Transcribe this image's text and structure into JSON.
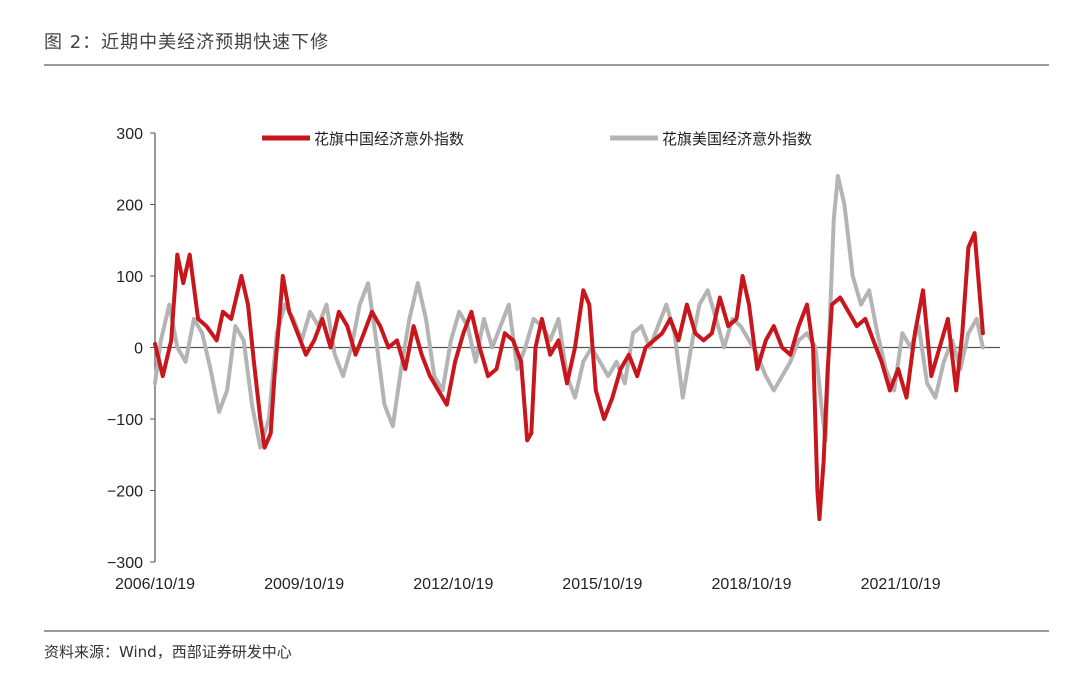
{
  "figure": {
    "title": "图 2：近期中美经济预期快速下修",
    "source": "资料来源：Wind，西部证券研发中心"
  },
  "chart_data": {
    "type": "line",
    "ylim": [
      -300,
      300
    ],
    "yticks": [
      "300",
      "200",
      "100",
      "0",
      "−100",
      "−200",
      "−300"
    ],
    "ytick_values": [
      300,
      200,
      100,
      0,
      -100,
      -200,
      -300
    ],
    "xlim": [
      "2006-10-19",
      "2023-10-19"
    ],
    "xticks": [
      "2006/10/19",
      "2009/10/19",
      "2012/10/19",
      "2015/10/19",
      "2018/10/19",
      "2021/10/19"
    ],
    "xtick_values": [
      "2006-10-19",
      "2009-10-19",
      "2012-10-19",
      "2015-10-19",
      "2018-10-19",
      "2021-10-19"
    ],
    "legend_position": "top",
    "series": [
      {
        "name": "花旗中国经济意外指数",
        "color": "#c8161d",
        "points": [
          [
            "2006-10-19",
            5
          ],
          [
            "2006-12-15",
            -40
          ],
          [
            "2007-02-15",
            10
          ],
          [
            "2007-04-01",
            130
          ],
          [
            "2007-05-15",
            90
          ],
          [
            "2007-07-01",
            130
          ],
          [
            "2007-09-01",
            40
          ],
          [
            "2007-11-01",
            30
          ],
          [
            "2008-01-15",
            10
          ],
          [
            "2008-03-01",
            50
          ],
          [
            "2008-05-01",
            40
          ],
          [
            "2008-07-15",
            100
          ],
          [
            "2008-09-01",
            60
          ],
          [
            "2008-10-15",
            -20
          ],
          [
            "2008-12-01",
            -100
          ],
          [
            "2009-01-01",
            -140
          ],
          [
            "2009-02-15",
            -120
          ],
          [
            "2009-03-15",
            -40
          ],
          [
            "2009-04-15",
            30
          ],
          [
            "2009-05-15",
            100
          ],
          [
            "2009-07-01",
            50
          ],
          [
            "2009-09-01",
            20
          ],
          [
            "2009-11-01",
            -10
          ],
          [
            "2010-01-01",
            10
          ],
          [
            "2010-03-01",
            40
          ],
          [
            "2010-05-01",
            0
          ],
          [
            "2010-07-01",
            50
          ],
          [
            "2010-09-01",
            30
          ],
          [
            "2010-11-01",
            -10
          ],
          [
            "2011-01-01",
            20
          ],
          [
            "2011-03-01",
            50
          ],
          [
            "2011-05-01",
            30
          ],
          [
            "2011-07-01",
            0
          ],
          [
            "2011-09-01",
            10
          ],
          [
            "2011-11-01",
            -30
          ],
          [
            "2012-01-01",
            30
          ],
          [
            "2012-03-01",
            -10
          ],
          [
            "2012-05-01",
            -40
          ],
          [
            "2012-07-01",
            -60
          ],
          [
            "2012-09-01",
            -80
          ],
          [
            "2012-11-01",
            -20
          ],
          [
            "2013-01-01",
            20
          ],
          [
            "2013-03-01",
            50
          ],
          [
            "2013-05-01",
            0
          ],
          [
            "2013-07-01",
            -40
          ],
          [
            "2013-09-01",
            -30
          ],
          [
            "2013-11-01",
            20
          ],
          [
            "2014-01-01",
            10
          ],
          [
            "2014-03-01",
            -20
          ],
          [
            "2014-04-15",
            -130
          ],
          [
            "2014-05-15",
            -120
          ],
          [
            "2014-06-15",
            0
          ],
          [
            "2014-08-01",
            40
          ],
          [
            "2014-10-01",
            -10
          ],
          [
            "2014-12-01",
            10
          ],
          [
            "2015-02-01",
            -50
          ],
          [
            "2015-04-01",
            0
          ],
          [
            "2015-06-01",
            80
          ],
          [
            "2015-07-15",
            60
          ],
          [
            "2015-09-01",
            -60
          ],
          [
            "2015-11-01",
            -100
          ],
          [
            "2016-01-01",
            -70
          ],
          [
            "2016-03-01",
            -30
          ],
          [
            "2016-05-01",
            -10
          ],
          [
            "2016-07-01",
            -40
          ],
          [
            "2016-09-01",
            0
          ],
          [
            "2016-11-01",
            10
          ],
          [
            "2017-01-01",
            20
          ],
          [
            "2017-03-01",
            40
          ],
          [
            "2017-05-01",
            10
          ],
          [
            "2017-07-01",
            60
          ],
          [
            "2017-09-01",
            20
          ],
          [
            "2017-11-01",
            10
          ],
          [
            "2018-01-01",
            20
          ],
          [
            "2018-03-01",
            70
          ],
          [
            "2018-05-01",
            30
          ],
          [
            "2018-07-01",
            40
          ],
          [
            "2018-08-15",
            100
          ],
          [
            "2018-10-01",
            60
          ],
          [
            "2018-12-01",
            -30
          ],
          [
            "2019-02-01",
            10
          ],
          [
            "2019-04-01",
            30
          ],
          [
            "2019-06-01",
            0
          ],
          [
            "2019-08-01",
            -10
          ],
          [
            "2019-10-01",
            30
          ],
          [
            "2019-12-01",
            60
          ],
          [
            "2020-01-15",
            0
          ],
          [
            "2020-02-15",
            -200
          ],
          [
            "2020-03-01",
            -240
          ],
          [
            "2020-04-01",
            -160
          ],
          [
            "2020-05-01",
            -30
          ],
          [
            "2020-06-01",
            60
          ],
          [
            "2020-08-01",
            70
          ],
          [
            "2020-10-01",
            50
          ],
          [
            "2020-12-01",
            30
          ],
          [
            "2021-02-01",
            40
          ],
          [
            "2021-04-01",
            10
          ],
          [
            "2021-06-01",
            -20
          ],
          [
            "2021-08-01",
            -60
          ],
          [
            "2021-10-01",
            -30
          ],
          [
            "2021-12-01",
            -70
          ],
          [
            "2022-02-01",
            20
          ],
          [
            "2022-04-01",
            80
          ],
          [
            "2022-06-01",
            -40
          ],
          [
            "2022-08-01",
            0
          ],
          [
            "2022-10-01",
            40
          ],
          [
            "2022-12-01",
            -60
          ],
          [
            "2023-01-15",
            20
          ],
          [
            "2023-03-01",
            140
          ],
          [
            "2023-04-15",
            160
          ],
          [
            "2023-06-15",
            20
          ]
        ]
      },
      {
        "name": "花旗美国经济意外指数",
        "color": "#b4b4b4",
        "points": [
          [
            "2006-10-19",
            -50
          ],
          [
            "2006-12-01",
            10
          ],
          [
            "2007-02-01",
            60
          ],
          [
            "2007-04-01",
            0
          ],
          [
            "2007-06-01",
            -20
          ],
          [
            "2007-08-01",
            40
          ],
          [
            "2007-10-01",
            20
          ],
          [
            "2007-12-01",
            -30
          ],
          [
            "2008-02-01",
            -90
          ],
          [
            "2008-04-01",
            -60
          ],
          [
            "2008-06-01",
            30
          ],
          [
            "2008-08-01",
            10
          ],
          [
            "2008-10-01",
            -80
          ],
          [
            "2008-12-01",
            -140
          ],
          [
            "2009-02-01",
            -100
          ],
          [
            "2009-04-01",
            20
          ],
          [
            "2009-06-01",
            60
          ],
          [
            "2009-08-01",
            40
          ],
          [
            "2009-10-01",
            10
          ],
          [
            "2009-12-01",
            50
          ],
          [
            "2010-02-01",
            30
          ],
          [
            "2010-04-01",
            60
          ],
          [
            "2010-06-01",
            -10
          ],
          [
            "2010-08-01",
            -40
          ],
          [
            "2010-10-01",
            0
          ],
          [
            "2010-12-01",
            60
          ],
          [
            "2011-02-01",
            90
          ],
          [
            "2011-04-01",
            10
          ],
          [
            "2011-06-01",
            -80
          ],
          [
            "2011-08-01",
            -110
          ],
          [
            "2011-10-01",
            -30
          ],
          [
            "2011-12-01",
            40
          ],
          [
            "2012-02-01",
            90
          ],
          [
            "2012-04-01",
            40
          ],
          [
            "2012-06-01",
            -40
          ],
          [
            "2012-08-01",
            -60
          ],
          [
            "2012-10-01",
            10
          ],
          [
            "2012-12-01",
            50
          ],
          [
            "2013-02-01",
            30
          ],
          [
            "2013-04-01",
            -20
          ],
          [
            "2013-06-01",
            40
          ],
          [
            "2013-08-01",
            0
          ],
          [
            "2013-10-01",
            30
          ],
          [
            "2013-12-01",
            60
          ],
          [
            "2014-02-01",
            -30
          ],
          [
            "2014-04-01",
            0
          ],
          [
            "2014-06-01",
            40
          ],
          [
            "2014-08-01",
            30
          ],
          [
            "2014-10-01",
            10
          ],
          [
            "2014-12-01",
            40
          ],
          [
            "2015-02-01",
            -40
          ],
          [
            "2015-04-01",
            -70
          ],
          [
            "2015-06-01",
            -20
          ],
          [
            "2015-08-01",
            0
          ],
          [
            "2015-10-01",
            -20
          ],
          [
            "2015-12-01",
            -40
          ],
          [
            "2016-02-01",
            -20
          ],
          [
            "2016-04-01",
            -50
          ],
          [
            "2016-06-01",
            20
          ],
          [
            "2016-08-01",
            30
          ],
          [
            "2016-10-01",
            0
          ],
          [
            "2016-12-01",
            30
          ],
          [
            "2017-02-01",
            60
          ],
          [
            "2017-04-01",
            20
          ],
          [
            "2017-06-01",
            -70
          ],
          [
            "2017-08-01",
            0
          ],
          [
            "2017-10-01",
            60
          ],
          [
            "2017-12-01",
            80
          ],
          [
            "2018-02-01",
            40
          ],
          [
            "2018-04-01",
            0
          ],
          [
            "2018-06-01",
            40
          ],
          [
            "2018-08-01",
            30
          ],
          [
            "2018-10-01",
            10
          ],
          [
            "2018-12-01",
            -10
          ],
          [
            "2019-02-01",
            -40
          ],
          [
            "2019-04-01",
            -60
          ],
          [
            "2019-06-01",
            -40
          ],
          [
            "2019-08-01",
            -20
          ],
          [
            "2019-10-01",
            10
          ],
          [
            "2019-12-01",
            20
          ],
          [
            "2020-02-01",
            0
          ],
          [
            "2020-03-15",
            -80
          ],
          [
            "2020-04-15",
            -130
          ],
          [
            "2020-05-15",
            30
          ],
          [
            "2020-06-15",
            180
          ],
          [
            "2020-07-15",
            240
          ],
          [
            "2020-09-01",
            200
          ],
          [
            "2020-11-01",
            100
          ],
          [
            "2021-01-01",
            60
          ],
          [
            "2021-03-01",
            80
          ],
          [
            "2021-05-01",
            20
          ],
          [
            "2021-07-01",
            -30
          ],
          [
            "2021-09-01",
            -60
          ],
          [
            "2021-11-01",
            20
          ],
          [
            "2022-01-01",
            0
          ],
          [
            "2022-03-01",
            30
          ],
          [
            "2022-05-01",
            -50
          ],
          [
            "2022-07-01",
            -70
          ],
          [
            "2022-09-01",
            -20
          ],
          [
            "2022-11-01",
            10
          ],
          [
            "2023-01-01",
            -30
          ],
          [
            "2023-03-01",
            20
          ],
          [
            "2023-05-01",
            40
          ],
          [
            "2023-06-15",
            0
          ]
        ]
      }
    ]
  }
}
